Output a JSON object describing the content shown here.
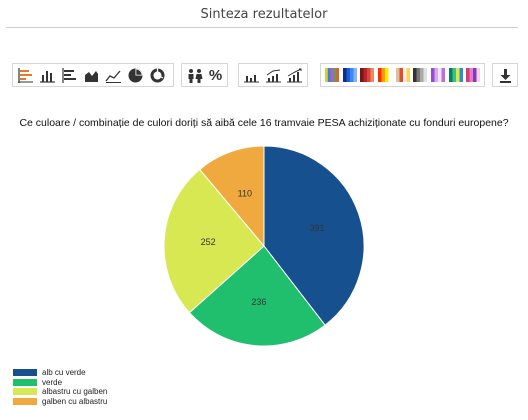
{
  "header": {
    "title": "Sinteza rezultatelor"
  },
  "toolbar": {
    "chart_types": [
      {
        "name": "bar-horizontal-icon"
      },
      {
        "name": "bar-vertical-icon"
      },
      {
        "name": "bar-horizontal-stacked-icon"
      },
      {
        "name": "area-icon"
      },
      {
        "name": "line-icon"
      },
      {
        "name": "pie-icon"
      },
      {
        "name": "donut-icon"
      }
    ],
    "value_modes": {
      "count_icon": "people-icon",
      "percent_label": "%"
    },
    "sort_modes": [
      {
        "name": "sort-default-icon"
      },
      {
        "name": "sort-asc-line-icon"
      },
      {
        "name": "sort-asc-bars-icon"
      }
    ],
    "palettes": [
      [
        "#f1c232",
        "#1f8fd2",
        "#c94fd0",
        "#5fa04a",
        "#e06030"
      ],
      [
        "#0f2c8a",
        "#1e5bd8",
        "#3a88f0",
        "#85b5f5"
      ],
      [
        "#7a1418",
        "#b8232a",
        "#d9463f",
        "#f08a5d"
      ],
      [
        "#ff2d00",
        "#ff9900",
        "#ffe800",
        "#ffffff"
      ],
      [
        "#d9c2a3",
        "#e54a2a",
        "#f0f0f0",
        "#ffd84a"
      ],
      [
        "#333333",
        "#777777",
        "#aaaaaa",
        "#e0e0e0"
      ],
      [
        "#8f4fd0",
        "#d8a8f0",
        "#f2e6fa",
        "#c06be0"
      ],
      [
        "#0c7d5a",
        "#3fbf7f",
        "#d8e84a",
        "#2d8fd0"
      ],
      [
        "#d13c8a",
        "#f07fb0",
        "#7a3ad0",
        "#f8d0e4"
      ]
    ],
    "download_icon": "download-icon"
  },
  "question": "Ce culoare / combinație de culori doriți să aibă cele 16 tramvaie PESA achiziționate cu fonduri europene?",
  "chart_data": {
    "type": "pie",
    "title": "Ce culoare / combinație de culori doriți să aibă cele 16 tramvaie PESA achiziționate cu fonduri europene?",
    "categories": [
      "alb cu verde",
      "verde",
      "albastru cu galben",
      "galben cu albastru"
    ],
    "values": [
      391,
      236,
      252,
      110
    ],
    "colors": [
      "#17508e",
      "#1fbf6e",
      "#d8e852",
      "#f0a93f"
    ],
    "legend_position": "bottom-left",
    "data_labels": true
  }
}
